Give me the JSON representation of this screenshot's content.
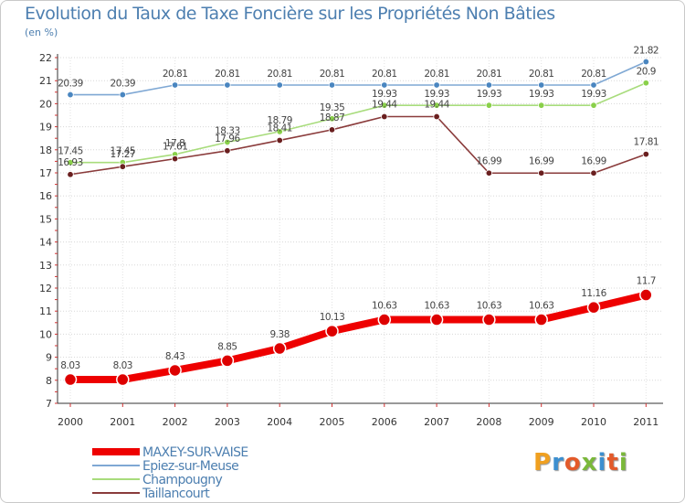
{
  "chart_data": {
    "type": "line",
    "title": "Evolution du Taux de Taxe Foncière sur les Propriétés Non Bâties",
    "unit_label": "(en %)",
    "ylim": [
      7,
      22
    ],
    "yticks": [
      "7",
      "8",
      "9",
      "10",
      "11",
      "12",
      "13",
      "14",
      "15",
      "16",
      "17",
      "18",
      "19",
      "20",
      "21",
      "22"
    ],
    "categories": [
      "2000",
      "2001",
      "2002",
      "2003",
      "2004",
      "2005",
      "2006",
      "2007",
      "2008",
      "2009",
      "2010",
      "2011"
    ],
    "series": [
      {
        "name": "MAXEY-SUR-VAISE",
        "color": "#ee0000",
        "marker_color": "#dd0000",
        "values": [
          8.03,
          8.03,
          8.43,
          8.85,
          9.38,
          10.13,
          10.63,
          10.63,
          10.63,
          10.63,
          11.16,
          11.7
        ],
        "labels": [
          "8.03",
          "8.03",
          "8.43",
          "8.85",
          "9.38",
          "10.13",
          "10.63",
          "10.63",
          "10.63",
          "10.63",
          "11.16",
          "11.7"
        ]
      },
      {
        "name": "Epiez-sur-Meuse",
        "color": "#7fa8d4",
        "marker_color": "#4a86c0",
        "values": [
          20.39,
          20.39,
          20.81,
          20.81,
          20.81,
          20.81,
          20.81,
          20.81,
          20.81,
          20.81,
          20.81,
          21.82
        ],
        "labels": [
          "20.39",
          "20.39",
          "20.81",
          "20.81",
          "20.81",
          "20.81",
          "20.81",
          "20.81",
          "20.81",
          "20.81",
          "20.81",
          "21.82"
        ]
      },
      {
        "name": "Champougny",
        "color": "#a8dc7c",
        "marker_color": "#8ad04a",
        "values": [
          17.45,
          17.45,
          17.8,
          18.33,
          18.79,
          19.35,
          19.93,
          19.93,
          19.93,
          19.93,
          19.93,
          20.9
        ],
        "labels": [
          "17.45",
          "17.45",
          "17.8",
          "18.33",
          "18.79",
          "19.35",
          "19.93",
          "19.93",
          "19.93",
          "19.93",
          "19.93",
          "20.9"
        ]
      },
      {
        "name": "Taillancourt",
        "color": "#8a3b3b",
        "marker_color": "#6a1f1f",
        "values": [
          16.93,
          17.27,
          17.61,
          17.96,
          18.41,
          18.87,
          19.44,
          19.44,
          16.99,
          16.99,
          16.99,
          17.81
        ],
        "labels": [
          "16.93",
          "17.27",
          "17.61",
          "17.96",
          "18.41",
          "18.87",
          "19.44",
          "19.44",
          "16.99",
          "16.99",
          "16.99",
          "17.81"
        ]
      }
    ],
    "legend": [
      "MAXEY-SUR-VAISE",
      "Epiez-sur-Meuse",
      "Champougny",
      "Taillancourt"
    ]
  },
  "branding": {
    "logo_letters": [
      "P",
      "r",
      "o",
      "x",
      "i",
      "t",
      "i"
    ],
    "logo_colors": [
      "#f0a020",
      "#3c8fd0",
      "#e35a2a",
      "#7ab83a",
      "#3c8fd0",
      "#e35a2a",
      "#7ab83a"
    ]
  }
}
